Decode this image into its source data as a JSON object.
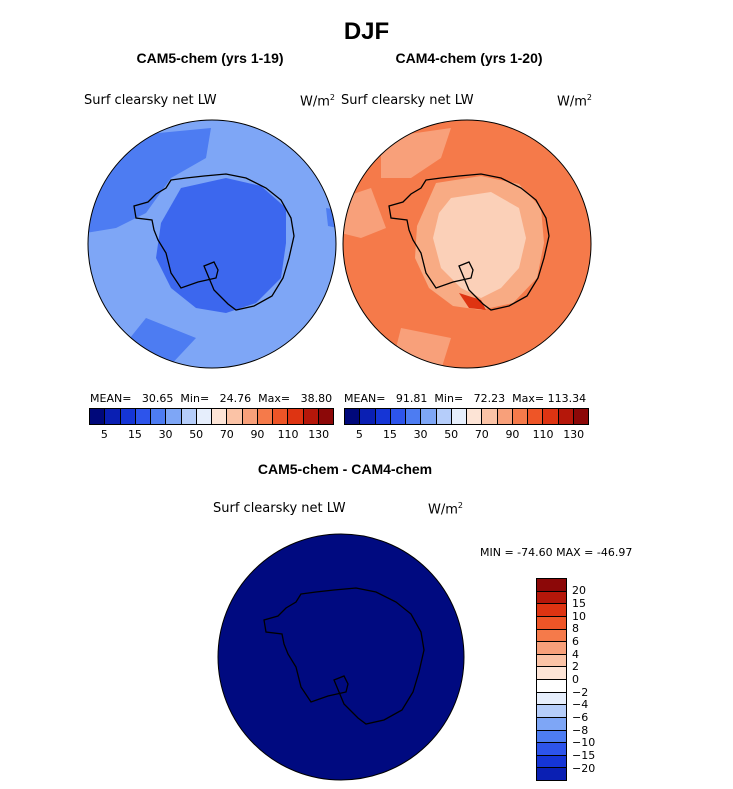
{
  "title": "DJF",
  "panels": [
    {
      "title": "CAM5-chem (yrs 1-19)",
      "variable": "Surf clearsky net LW",
      "units_base": "W/m",
      "units_exp": "2",
      "mean_label": "MEAN=",
      "mean": "30.65",
      "min_label": "Min=",
      "min": "24.76",
      "max_label": "Max=",
      "max": "38.80",
      "ocean_color": "#7ea6f6",
      "region_color": "#4d7cf2",
      "ice_color": "#3c67ee"
    },
    {
      "title": "CAM4-chem (yrs 1-20)",
      "variable": "Surf clearsky net LW",
      "units_base": "W/m",
      "units_exp": "2",
      "mean_label": "MEAN=",
      "mean": "91.81",
      "min_label": "Min=",
      "min": "72.23",
      "max_label": "Max=",
      "max": "113.34",
      "ocean_color": "#f57a4a",
      "region_color": "#f8ab84",
      "ice_color": "#fbd0b8"
    }
  ],
  "abs_colorbar": {
    "colors": [
      "#00087a",
      "#0a1fb3",
      "#1535d6",
      "#2d54eb",
      "#4d7cf2",
      "#7ea6f6",
      "#b5cdfa",
      "#e6eefc",
      "#fde4d6",
      "#fbc3a6",
      "#f8a07a",
      "#f57a4a",
      "#ee5527",
      "#de3412",
      "#b5170a",
      "#8c0808"
    ],
    "ticks": [
      "5",
      "15",
      "30",
      "50",
      "70",
      "90",
      "110",
      "130"
    ]
  },
  "diff_panel": {
    "title": "CAM5-chem - CAM4-chem",
    "variable": "Surf clearsky net LW",
    "units_base": "W/m",
    "units_exp": "2",
    "minmax": "MIN = -74.60 MAX = -46.97",
    "fill_color": "#000a80"
  },
  "diff_colorbar": {
    "colors": [
      "#8c0808",
      "#b5170a",
      "#de3412",
      "#ee5527",
      "#f57a4a",
      "#f8a07a",
      "#fbc3a6",
      "#fde4d6",
      "#ffffff",
      "#e6eefc",
      "#b5cdfa",
      "#7ea6f6",
      "#4d7cf2",
      "#2d54eb",
      "#1535d6",
      "#0a1fb3"
    ],
    "ticks": [
      "20",
      "15",
      "10",
      "8",
      "6",
      "4",
      "2",
      "0",
      "−2",
      "−4",
      "−6",
      "−8",
      "−10",
      "−15",
      "−20"
    ]
  }
}
